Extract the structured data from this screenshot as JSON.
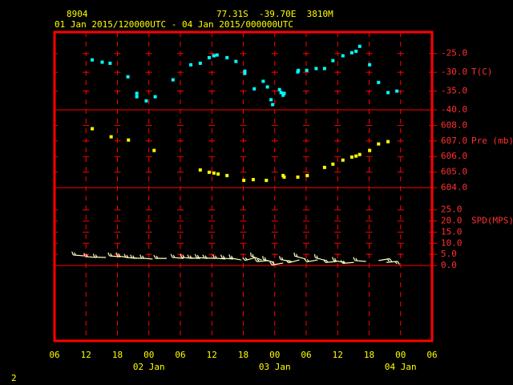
{
  "header": {
    "station": "8904",
    "location": "77.31S  -39.70E  3810M",
    "period": "01 Jan 2015/120000UTC - 04 Jan 2015/000000UTC"
  },
  "footer": "2",
  "xaxis": {
    "xlim": [
      0,
      72
    ],
    "xticks": [
      {
        "value": 0,
        "label": "06"
      },
      {
        "value": 6,
        "label": "12"
      },
      {
        "value": 12,
        "label": "18"
      },
      {
        "value": 18,
        "label": "00"
      },
      {
        "value": 24,
        "label": "06"
      },
      {
        "value": 30,
        "label": "12"
      },
      {
        "value": 36,
        "label": "18"
      },
      {
        "value": 42,
        "label": "00"
      },
      {
        "value": 48,
        "label": "06"
      },
      {
        "value": 54,
        "label": "12"
      },
      {
        "value": 60,
        "label": "18"
      },
      {
        "value": 66,
        "label": "00"
      },
      {
        "value": 72,
        "label": "06"
      }
    ],
    "date_labels": [
      {
        "value": 18,
        "label": "02 Jan"
      },
      {
        "value": 42,
        "label": "03 Jan"
      },
      {
        "value": 66,
        "label": "04 Jan"
      }
    ]
  },
  "chart_data": [
    {
      "type": "scatter",
      "ylabel": "T(C)",
      "color": "#00ffff",
      "ylim": [
        -40,
        -19.3
      ],
      "yticks": [
        {
          "value": -25,
          "label": "-25.0"
        },
        {
          "value": -30,
          "label": "-30.0"
        },
        {
          "value": -35,
          "label": "-35.0"
        },
        {
          "value": -40,
          "label": "-40.0"
        }
      ],
      "x": [
        7.2,
        9.1,
        10.6,
        14.0,
        15.7,
        15.7,
        17.5,
        19.2,
        22.6,
        26.0,
        27.8,
        29.5,
        30.4,
        31.0,
        32.9,
        34.6,
        36.3,
        36.3,
        38.1,
        39.8,
        40.6,
        41.3,
        41.6,
        42.9,
        43.2,
        43.6,
        43.8,
        46.4,
        46.5,
        48.1,
        49.9,
        51.5,
        53.1,
        55.0,
        56.7,
        57.5,
        58.2,
        60.1,
        61.8,
        63.6,
        65.3
      ],
      "values": [
        -26.7,
        -27.3,
        -27.6,
        -31.2,
        -35.6,
        -36.5,
        -37.6,
        -36.5,
        -32.0,
        -28.0,
        -27.6,
        -26.1,
        -25.6,
        -25.4,
        -26.1,
        -27.1,
        -29.7,
        -30.3,
        -34.4,
        -32.4,
        -33.9,
        -37.3,
        -38.6,
        -34.6,
        -35.4,
        -36.1,
        -35.6,
        -29.9,
        -29.5,
        -29.5,
        -29.0,
        -29.0,
        -26.9,
        -25.6,
        -24.8,
        -24.4,
        -23.1,
        -28.0,
        -32.7,
        -35.4,
        -35.0
      ]
    },
    {
      "type": "scatter",
      "ylabel": "Pre (mb)",
      "color": "#ffff00",
      "ylim": [
        604,
        609
      ],
      "yticks": [
        {
          "value": 608,
          "label": "608.0"
        },
        {
          "value": 607,
          "label": "607.0"
        },
        {
          "value": 606,
          "label": "606.0"
        },
        {
          "value": 605,
          "label": "605.0"
        },
        {
          "value": 604,
          "label": "604.0"
        }
      ],
      "x": [
        7.2,
        10.8,
        14.1,
        19.0,
        27.8,
        29.5,
        30.4,
        31.2,
        32.9,
        36.1,
        37.9,
        40.4,
        43.6,
        43.8,
        46.4,
        48.2,
        51.5,
        53.1,
        55.0,
        56.7,
        57.5,
        58.2,
        60.1,
        61.8,
        63.6
      ],
      "values": [
        607.79,
        607.27,
        607.06,
        606.39,
        605.14,
        604.99,
        604.94,
        604.88,
        604.78,
        604.47,
        604.52,
        604.47,
        604.78,
        604.68,
        604.68,
        604.78,
        605.3,
        605.51,
        605.77,
        605.97,
        606.03,
        606.13,
        606.39,
        606.81,
        606.96
      ]
    },
    {
      "type": "barbs",
      "ylabel": "SPD(MPS)",
      "color": "#ffffc0",
      "ylim": [
        0,
        35
      ],
      "yticks": [
        {
          "value": 25,
          "label": "25.0"
        },
        {
          "value": 20,
          "label": "20.0"
        },
        {
          "value": 15,
          "label": "15.0"
        },
        {
          "value": 10,
          "label": "10.0"
        },
        {
          "value": 5,
          "label": "5.0"
        },
        {
          "value": 0,
          "label": "0.0"
        }
      ],
      "x": [
        5.7,
        8.0,
        9.8,
        12.6,
        14.1,
        15.7,
        16.9,
        18.7,
        21.4,
        24.6,
        26.4,
        27.8,
        29.2,
        30.7,
        32.6,
        34.1,
        35.6,
        38.4,
        39.5,
        40.7,
        41.9,
        43.6,
        45.2,
        46.7,
        47.9,
        50.2,
        51.8,
        53.8,
        55.3,
        57.1,
        59.4,
        61.8,
        63.3
      ],
      "values": [
        4.3,
        3.6,
        3.6,
        3.9,
        3.6,
        3.2,
        3.2,
        2.9,
        3.2,
        3.2,
        3.2,
        3.2,
        3.2,
        3.2,
        2.9,
        2.9,
        2.5,
        3.6,
        2.5,
        2.2,
        1.4,
        1.1,
        1.8,
        2.5,
        2.9,
        2.5,
        2.2,
        1.8,
        1.4,
        1.4,
        1.8,
        2.2,
        1.4
      ],
      "direction": [
        275,
        275,
        272,
        275,
        278,
        275,
        272,
        275,
        270,
        275,
        275,
        272,
        275,
        272,
        275,
        275,
        280,
        255,
        290,
        265,
        285,
        260,
        280,
        255,
        285,
        260,
        285,
        265,
        280,
        265,
        275,
        80,
        85
      ]
    }
  ]
}
